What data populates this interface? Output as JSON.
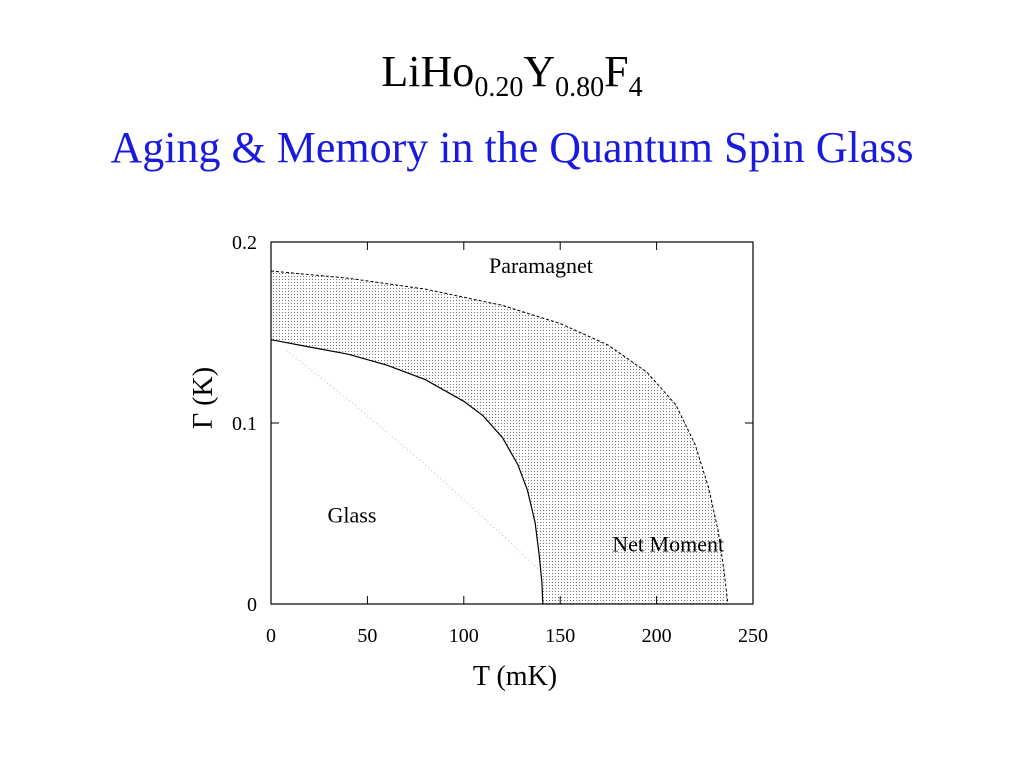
{
  "slide": {
    "title_base": "LiHo",
    "title_sub1": "0.20",
    "title_y": "Y",
    "title_sub2": "0.80",
    "title_f": "F",
    "title_sub3": "4",
    "subtitle": "Aging & Memory in the Quantum Spin Glass",
    "subtitle_color": "#1a1adc"
  },
  "chart_data": {
    "type": "line",
    "title": "",
    "xlabel": "T (mK)",
    "ylabel": "Γ (K)",
    "xlim": [
      0,
      250
    ],
    "ylim": [
      0,
      0.2
    ],
    "x_ticks": [
      0,
      50,
      100,
      150,
      200,
      250
    ],
    "y_ticks": [
      0,
      0.1,
      0.2
    ],
    "x_tick_labels": [
      "0",
      "50",
      "100",
      "150",
      "200",
      "250"
    ],
    "y_tick_labels": [
      "0",
      "0.1",
      "0.2"
    ],
    "grid": false,
    "series": [
      {
        "style": "solid",
        "points": [
          [
            0,
            0.146
          ],
          [
            20,
            0.142
          ],
          [
            40,
            0.138
          ],
          [
            60,
            0.132
          ],
          [
            80,
            0.124
          ],
          [
            100,
            0.112
          ],
          [
            110,
            0.104
          ],
          [
            120,
            0.092
          ],
          [
            128,
            0.077
          ],
          [
            133,
            0.063
          ],
          [
            137,
            0.045
          ],
          [
            139,
            0.028
          ],
          [
            140.5,
            0.012
          ],
          [
            141,
            0.0
          ]
        ]
      },
      {
        "style": "dashed",
        "points": [
          [
            0,
            0.184
          ],
          [
            40,
            0.18
          ],
          [
            80,
            0.174
          ],
          [
            120,
            0.165
          ],
          [
            150,
            0.155
          ],
          [
            175,
            0.143
          ],
          [
            195,
            0.128
          ],
          [
            210,
            0.11
          ],
          [
            220,
            0.088
          ],
          [
            227,
            0.064
          ],
          [
            232,
            0.04
          ],
          [
            235,
            0.018
          ],
          [
            237,
            0.0
          ]
        ]
      },
      {
        "style": "dotted",
        "points": [
          [
            8,
            0.14
          ],
          [
            40,
            0.113
          ],
          [
            80,
            0.077
          ],
          [
            120,
            0.038
          ],
          [
            140,
            0.018
          ]
        ]
      }
    ],
    "shaded_region": "between-solid-and-dashed",
    "annotations": [
      {
        "text": "Paramagnet",
        "x": 140,
        "y": 0.183
      },
      {
        "text": "Glass",
        "x": 42,
        "y": 0.045
      },
      {
        "text": "Net Moment",
        "x": 206,
        "y": 0.029
      }
    ]
  }
}
